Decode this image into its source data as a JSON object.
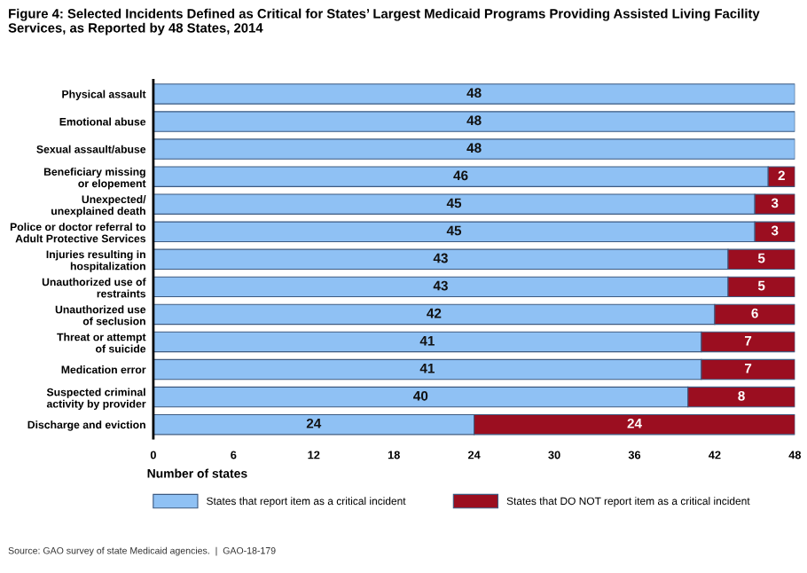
{
  "chart_data": {
    "type": "bar",
    "orientation": "horizontal",
    "stacked": true,
    "title": "Figure 4: Selected Incidents Defined as Critical for States’ Largest Medicaid Programs Providing Assisted Living Facility\nServices, as Reported by 48 States, 2014",
    "xlabel": "Number of states",
    "categories": [
      "Physical assault",
      "Emotional abuse",
      "Sexual assault/abuse",
      "Beneficiary missing\nor elopement",
      "Unexpected/\nunexplained death",
      "Police or doctor referral to\nAdult Protective Services",
      "Injuries resulting in\nhospitalization",
      "Unauthorized use of\nrestraints",
      "Unauthorized use\nof seclusion",
      "Threat or attempt\nof suicide",
      "Medication error",
      "Suspected criminal\nactivity by provider",
      "Discharge and eviction"
    ],
    "series": [
      {
        "name": "States that report item as a critical incident",
        "color": "#8fc1f4",
        "values": [
          48,
          48,
          48,
          46,
          45,
          45,
          43,
          43,
          42,
          41,
          41,
          40,
          24
        ]
      },
      {
        "name": "States that DO NOT report item as a critical incident",
        "color": "#9b0e20",
        "values": [
          null,
          null,
          null,
          2,
          3,
          3,
          5,
          5,
          6,
          7,
          7,
          8,
          24
        ]
      }
    ],
    "xlim": [
      0,
      48
    ],
    "xticks": [
      0,
      6,
      12,
      18,
      24,
      30,
      36,
      42,
      48
    ],
    "data_labels": true,
    "legend": "bottom",
    "grid": false,
    "annotations": [
      "Source: GAO survey of state Medicaid agencies.  |  GAO-18-179"
    ]
  }
}
